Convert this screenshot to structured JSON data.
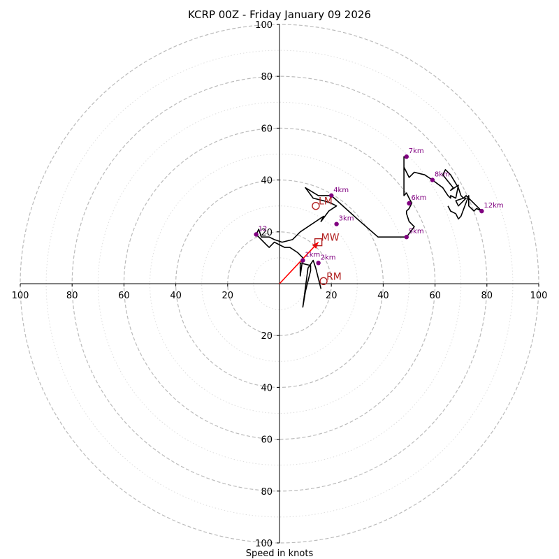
{
  "chart_data": {
    "type": "hodograph",
    "title": "KCRP 00Z - Friday January 09 2026",
    "xlabel": "Speed in knots",
    "units": "knots",
    "axis_range": [
      -100,
      100
    ],
    "rings_major": [
      20,
      40,
      60,
      80,
      100
    ],
    "rings_minor": [
      10,
      30,
      50,
      70,
      90
    ],
    "x_tick_labels": [
      "100",
      "80",
      "60",
      "40",
      "20",
      "20",
      "40",
      "60",
      "80",
      "100"
    ],
    "y_tick_labels_top": [
      "20",
      "40",
      "60",
      "80",
      "100"
    ],
    "y_tick_labels_bottom": [
      "20",
      "40",
      "60",
      "80",
      "100"
    ],
    "colors": {
      "trace": "#000000",
      "height_markers": "#800080",
      "storm_motion": "#b22222",
      "shear_vector": "#ff0000",
      "ring_major": "#bbbbbb",
      "ring_minor": "#dddddd"
    },
    "trace": [
      [
        16,
        -2
      ],
      [
        15,
        2
      ],
      [
        14,
        6
      ],
      [
        13,
        9
      ],
      [
        11,
        6
      ],
      [
        9,
        -9
      ],
      [
        10,
        -3
      ],
      [
        12,
        5
      ],
      [
        12,
        7
      ],
      [
        8,
        8
      ],
      [
        8,
        3
      ],
      [
        9,
        10
      ],
      [
        7,
        12
      ],
      [
        4,
        14
      ],
      [
        2,
        14
      ],
      [
        0,
        15
      ],
      [
        -2,
        16
      ],
      [
        -4,
        14
      ],
      [
        -5,
        15
      ],
      [
        -7,
        17
      ],
      [
        -8,
        18
      ],
      [
        -9,
        19
      ],
      [
        -8,
        21
      ],
      [
        -7,
        18
      ],
      [
        -4,
        18
      ],
      [
        -2,
        17
      ],
      [
        1,
        16
      ],
      [
        5,
        17
      ],
      [
        8,
        20
      ],
      [
        17,
        26
      ],
      [
        16,
        24
      ],
      [
        16,
        24
      ],
      [
        19,
        28
      ],
      [
        22,
        30
      ],
      [
        20,
        31
      ],
      [
        17,
        32
      ],
      [
        13,
        33
      ],
      [
        10,
        37
      ],
      [
        15,
        34
      ],
      [
        20,
        34
      ],
      [
        30,
        25
      ],
      [
        38,
        18
      ],
      [
        45,
        18
      ],
      [
        49,
        18
      ],
      [
        52,
        22
      ],
      [
        50,
        24
      ],
      [
        49,
        27
      ],
      [
        49,
        28
      ],
      [
        50,
        29
      ],
      [
        51,
        31
      ],
      [
        50,
        33
      ],
      [
        49,
        35
      ],
      [
        48,
        34
      ],
      [
        48,
        38
      ],
      [
        48,
        49
      ],
      [
        48,
        45
      ],
      [
        49,
        43
      ],
      [
        50,
        41
      ],
      [
        52,
        43
      ],
      [
        56,
        42
      ],
      [
        59,
        40
      ],
      [
        63,
        37
      ],
      [
        65,
        34
      ],
      [
        66,
        33
      ],
      [
        66,
        34
      ],
      [
        68,
        33
      ],
      [
        69,
        38
      ],
      [
        66,
        36
      ],
      [
        67,
        37
      ],
      [
        63,
        42
      ],
      [
        64,
        44
      ],
      [
        66,
        42
      ],
      [
        69,
        37
      ],
      [
        70,
        34
      ],
      [
        71,
        33
      ],
      [
        72,
        33
      ],
      [
        69,
        30
      ],
      [
        68,
        32
      ],
      [
        71,
        33
      ],
      [
        72,
        34
      ],
      [
        74,
        32
      ],
      [
        78,
        28
      ],
      [
        76,
        29
      ],
      [
        75,
        28
      ],
      [
        73,
        30
      ],
      [
        73,
        32
      ],
      [
        73,
        34
      ],
      [
        70,
        26
      ],
      [
        69,
        25
      ],
      [
        68,
        27
      ],
      [
        66,
        28
      ],
      [
        65,
        30
      ]
    ],
    "height_markers": [
      {
        "label": "1km",
        "u": 9,
        "v": 9
      },
      {
        "label": "2km",
        "u": 15,
        "v": 8
      },
      {
        "label": "3km",
        "u": 22,
        "v": 23
      },
      {
        "label": "4km",
        "u": 20,
        "v": 34
      },
      {
        "label": "5km",
        "u": 49,
        "v": 18
      },
      {
        "label": "6km",
        "u": 50,
        "v": 31
      },
      {
        "label": "7km",
        "u": 49,
        "v": 49
      },
      {
        "label": "8km",
        "u": 59,
        "v": 40
      },
      {
        "label": "12km",
        "u": 78,
        "v": 28
      },
      {
        "label": "12",
        "u": -9,
        "v": 19
      }
    ],
    "storm_motion": [
      {
        "label": "LM",
        "u": 14,
        "v": 30,
        "shape": "circle"
      },
      {
        "label": "RM",
        "u": 17,
        "v": 1,
        "shape": "circle"
      },
      {
        "label": "MW",
        "u": 15,
        "v": 16,
        "shape": "square"
      }
    ],
    "shear_vector": {
      "from_u": 0,
      "from_v": 0,
      "to_u": 15,
      "to_v": 16
    }
  }
}
